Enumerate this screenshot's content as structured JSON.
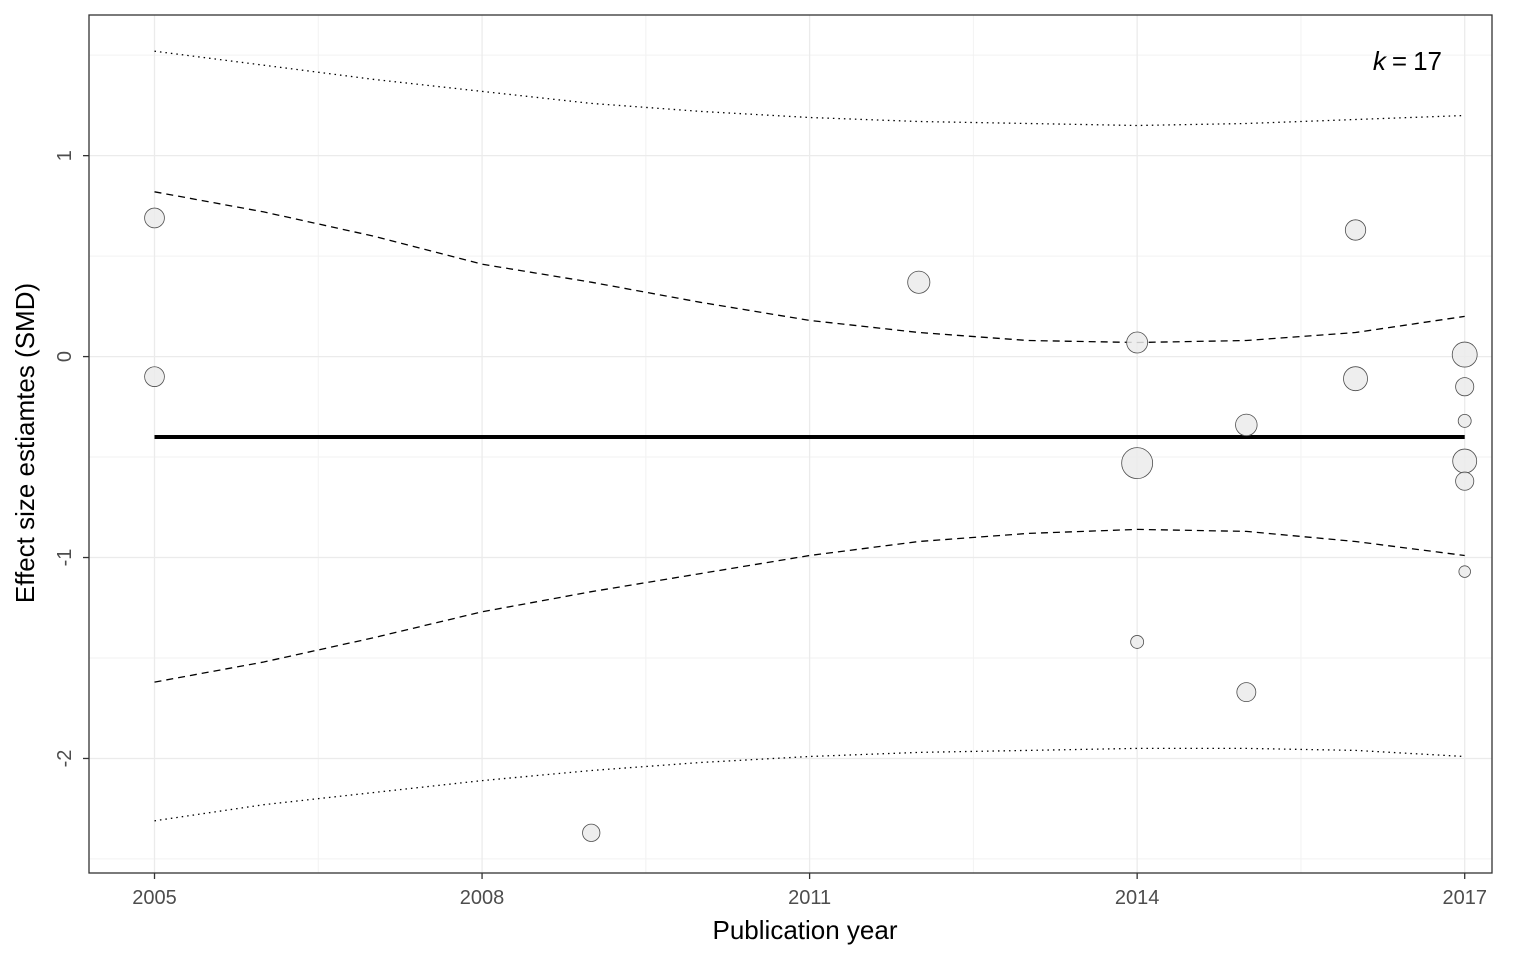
{
  "chart_data": {
    "type": "scatter",
    "xlabel": "Publication year",
    "ylabel": "Effect size estiamtes (SMD)",
    "annotation": {
      "k_label": "k",
      "equals": "=",
      "value": "17"
    },
    "xlim": [
      2004.4,
      2017.25
    ],
    "ylim": [
      -2.57,
      1.7
    ],
    "x_ticks": [
      2005,
      2008,
      2011,
      2014,
      2017
    ],
    "y_ticks": [
      -2,
      -1,
      0,
      1
    ],
    "y_tick_labels": [
      "-2",
      "-1",
      "0",
      "1"
    ],
    "grid": true,
    "points": [
      {
        "x": 2005,
        "y": 0.69,
        "weight": 0.45
      },
      {
        "x": 2005,
        "y": -0.1,
        "weight": 0.45
      },
      {
        "x": 2009,
        "y": -2.37,
        "weight": 0.3
      },
      {
        "x": 2012,
        "y": 0.37,
        "weight": 0.65
      },
      {
        "x": 2014,
        "y": 0.07,
        "weight": 0.55
      },
      {
        "x": 2014,
        "y": -0.53,
        "weight": 1.6
      },
      {
        "x": 2014,
        "y": -1.42,
        "weight": 0.1
      },
      {
        "x": 2015,
        "y": -0.34,
        "weight": 0.6
      },
      {
        "x": 2015,
        "y": -1.67,
        "weight": 0.4
      },
      {
        "x": 2016,
        "y": 0.63,
        "weight": 0.5
      },
      {
        "x": 2016,
        "y": -0.11,
        "weight": 0.8
      },
      {
        "x": 2017,
        "y": 0.01,
        "weight": 0.9
      },
      {
        "x": 2017,
        "y": -0.15,
        "weight": 0.35
      },
      {
        "x": 2017,
        "y": -0.32,
        "weight": 0.1
      },
      {
        "x": 2017,
        "y": -0.52,
        "weight": 0.8
      },
      {
        "x": 2017,
        "y": -0.62,
        "weight": 0.35
      },
      {
        "x": 2017,
        "y": -1.07,
        "weight": 0.06
      }
    ],
    "series": [
      {
        "style": "solid",
        "x": [
          2005,
          2011.6,
          2017
        ],
        "y": [
          -0.4,
          -0.4,
          -0.4
        ]
      },
      {
        "style": "dashed",
        "x": [
          2005,
          2006,
          2007,
          2008,
          2009,
          2010,
          2011,
          2012,
          2013,
          2014,
          2015,
          2016,
          2017
        ],
        "y": [
          0.82,
          0.72,
          0.6,
          0.46,
          0.37,
          0.27,
          0.18,
          0.12,
          0.08,
          0.07,
          0.08,
          0.12,
          0.2
        ]
      },
      {
        "style": "dashed",
        "x": [
          2005,
          2006,
          2007,
          2008,
          2009,
          2010,
          2011,
          2012,
          2013,
          2014,
          2015,
          2016,
          2017
        ],
        "y": [
          -1.62,
          -1.52,
          -1.4,
          -1.27,
          -1.17,
          -1.08,
          -0.99,
          -0.92,
          -0.88,
          -0.86,
          -0.87,
          -0.92,
          -0.99
        ]
      },
      {
        "style": "dotted",
        "x": [
          2005,
          2006,
          2007,
          2008,
          2009,
          2010,
          2011,
          2012,
          2013,
          2014,
          2015,
          2016,
          2017
        ],
        "y": [
          1.52,
          1.45,
          1.38,
          1.32,
          1.26,
          1.22,
          1.19,
          1.17,
          1.16,
          1.15,
          1.16,
          1.18,
          1.2
        ]
      },
      {
        "style": "dotted",
        "x": [
          2005,
          2006,
          2007,
          2008,
          2009,
          2010,
          2011,
          2012,
          2013,
          2014,
          2015,
          2016,
          2017
        ],
        "y": [
          -2.31,
          -2.23,
          -2.17,
          -2.11,
          -2.06,
          -2.02,
          -1.99,
          -1.97,
          -1.96,
          -1.95,
          -1.95,
          -1.96,
          -1.99
        ]
      }
    ]
  }
}
